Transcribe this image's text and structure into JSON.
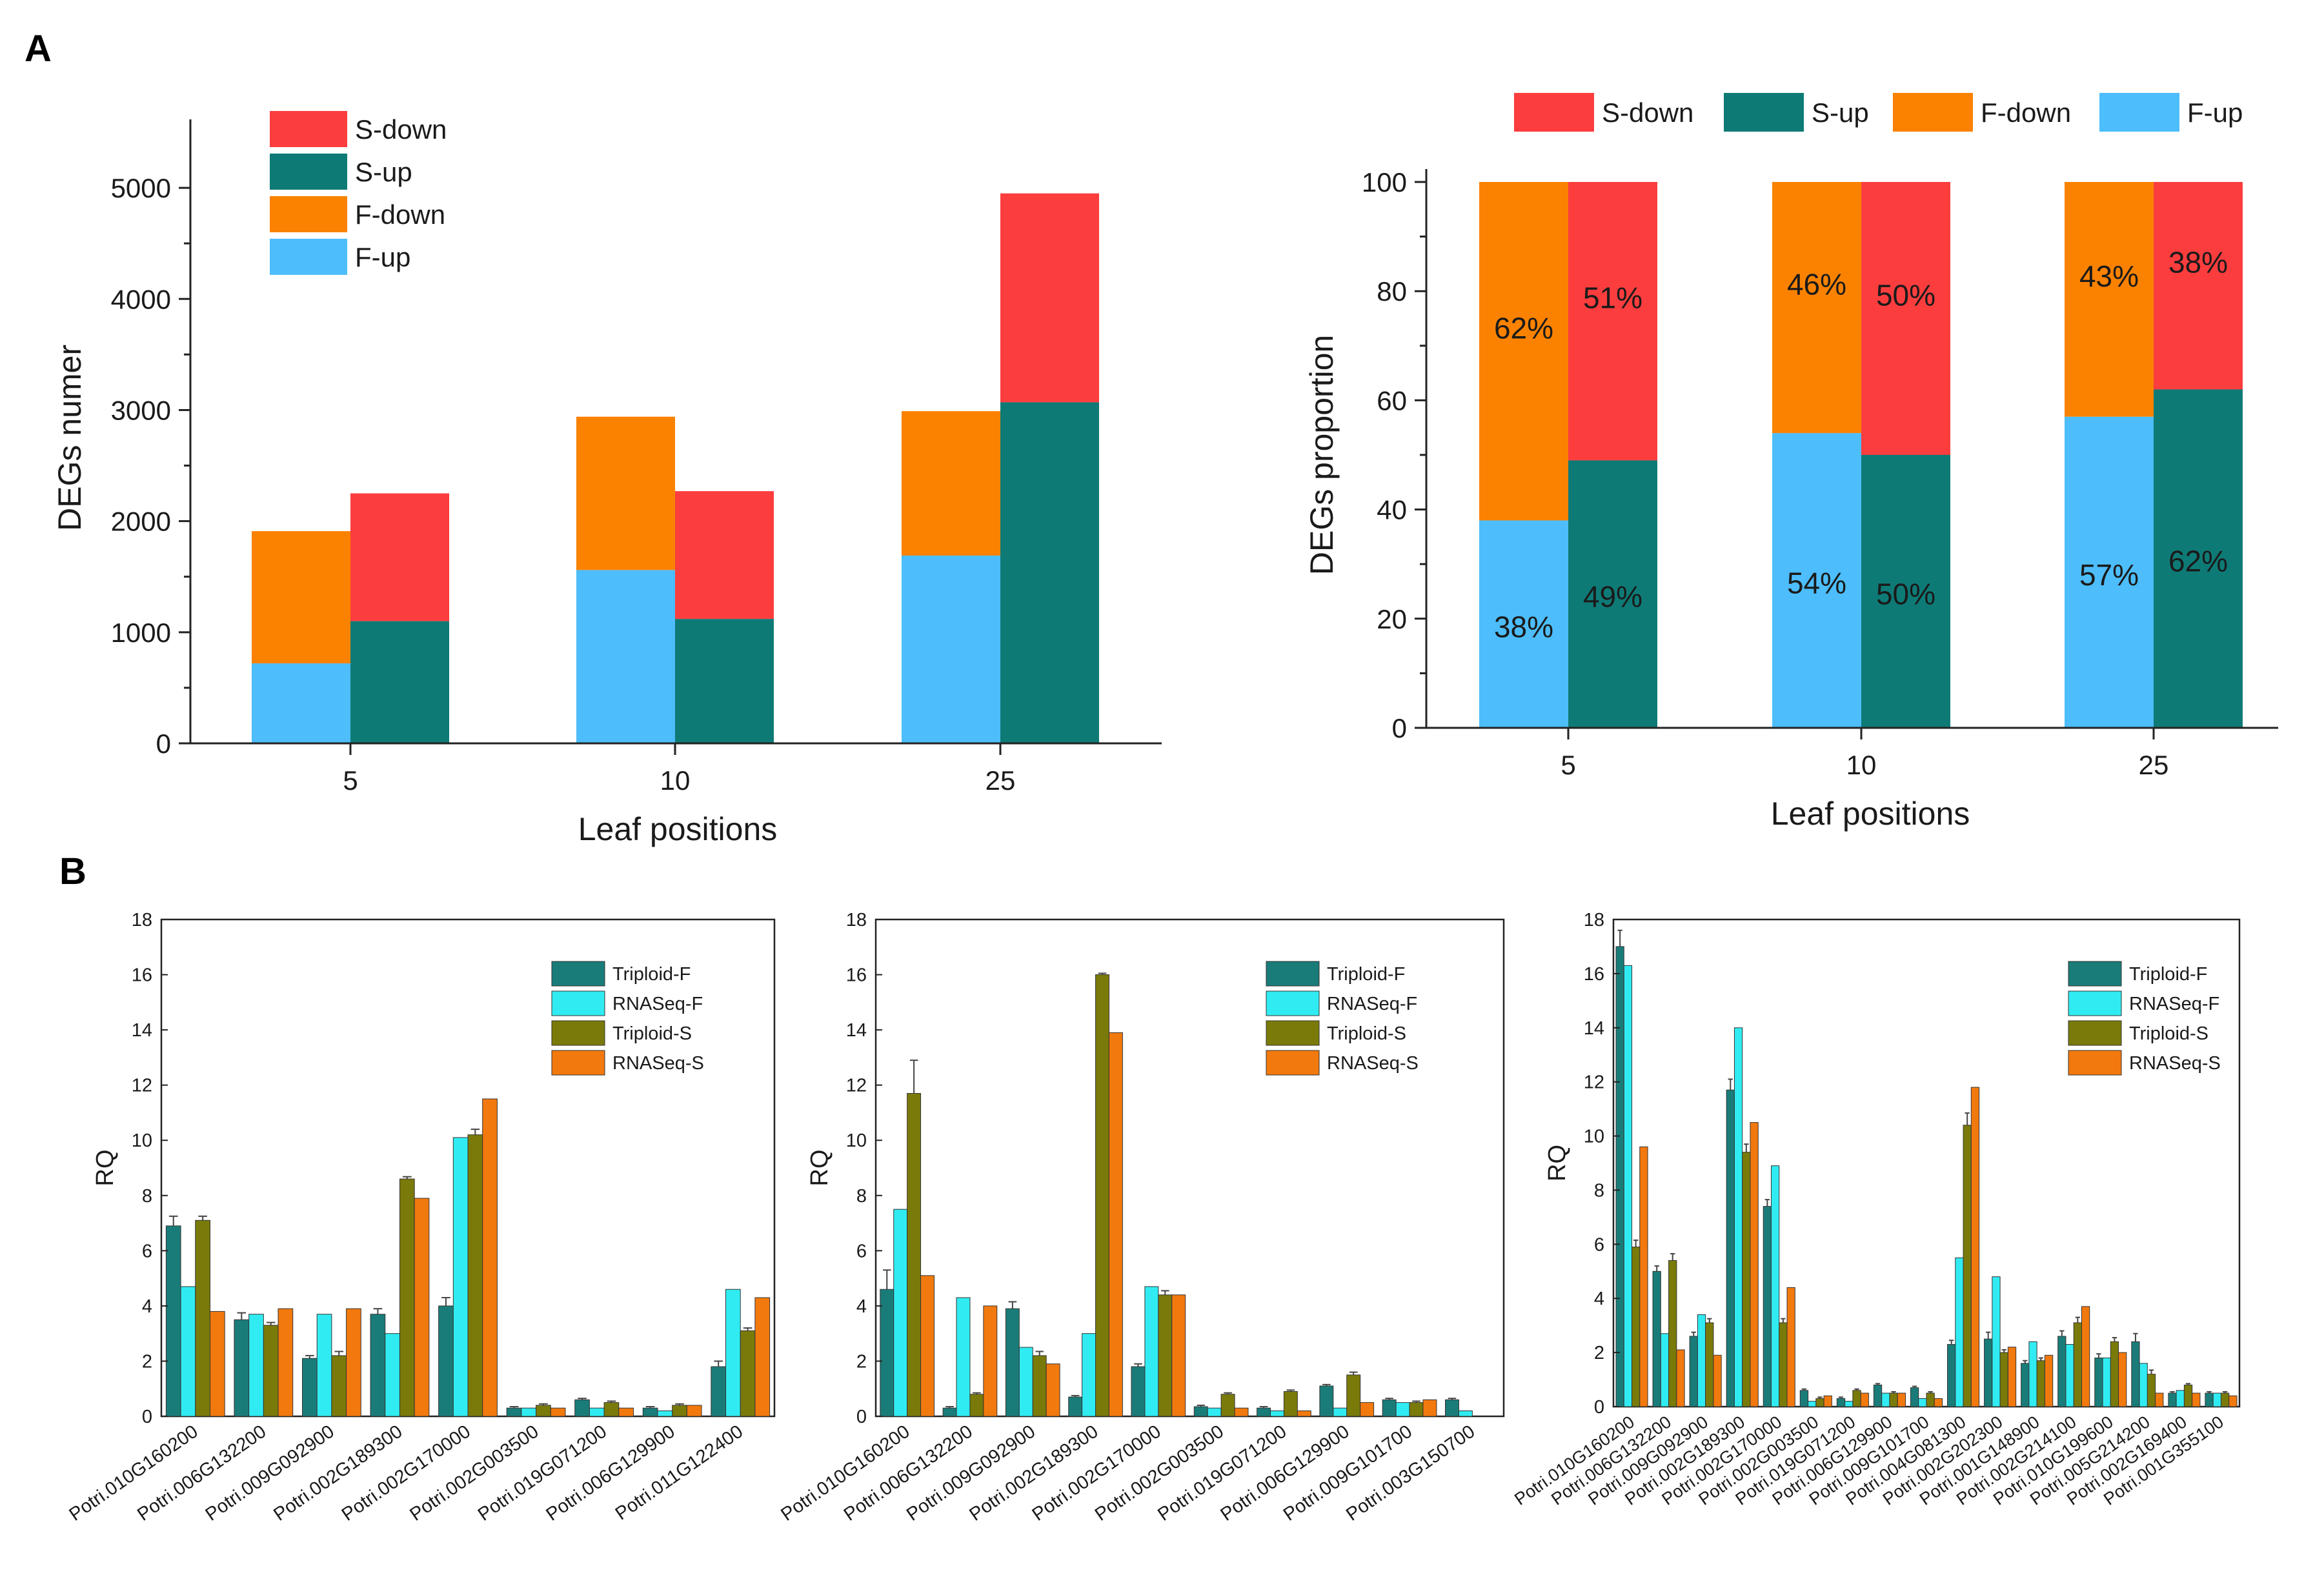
{
  "colors": {
    "s_down": "#fb3d3e",
    "s_up": "#0e7a76",
    "f_down": "#fb8200",
    "f_up": "#4dbdfb",
    "triploid_f": "#1a7c79",
    "rnaseq_f": "#30ecf2",
    "triploid_s": "#7a7a0a",
    "rnaseq_s": "#f2790e"
  },
  "panel_labels": {
    "a": "A",
    "b": "B"
  },
  "chart_data": [
    {
      "id": "a-counts",
      "type": "bar",
      "stacked": true,
      "categories": [
        "5",
        "10",
        "25"
      ],
      "groups": [
        {
          "name": "F",
          "stack": [
            {
              "name": "F-up",
              "values": [
                720,
                1560,
                1690
              ]
            },
            {
              "name": "F-down",
              "values": [
                1190,
                1380,
                1300
              ]
            }
          ]
        },
        {
          "name": "S",
          "stack": [
            {
              "name": "S-up",
              "values": [
                1100,
                1120,
                3070
              ]
            },
            {
              "name": "S-down",
              "values": [
                1150,
                1150,
                1880
              ]
            }
          ]
        }
      ],
      "xlabel": "Leaf positions",
      "ylabel": "DEGs numer",
      "ylim": [
        0,
        5500
      ],
      "yticks": [
        0,
        1000,
        2000,
        3000,
        4000,
        5000
      ],
      "legend": [
        "S-down",
        "S-up",
        "F-down",
        "F-up"
      ],
      "legend_position": "top-left"
    },
    {
      "id": "a-proportion",
      "type": "bar",
      "stacked": true,
      "categories": [
        "5",
        "10",
        "25"
      ],
      "groups": [
        {
          "name": "F",
          "stack": [
            {
              "name": "F-up",
              "values": [
                38,
                54,
                57
              ],
              "labels": [
                "38%",
                "54%",
                "57%"
              ]
            },
            {
              "name": "F-down",
              "values": [
                62,
                46,
                43
              ],
              "labels": [
                "62%",
                "46%",
                "43%"
              ]
            }
          ]
        },
        {
          "name": "S",
          "stack": [
            {
              "name": "S-up",
              "values": [
                49,
                50,
                62
              ],
              "labels": [
                "49%",
                "50%",
                "62%"
              ]
            },
            {
              "name": "S-down",
              "values": [
                51,
                50,
                38
              ],
              "labels": [
                "51%",
                "50%",
                "38%"
              ]
            }
          ]
        }
      ],
      "xlabel": "Leaf positions",
      "ylabel": "DEGs proportion",
      "ylim": [
        0,
        100
      ],
      "yticks": [
        0,
        20,
        40,
        60,
        80,
        100
      ],
      "legend": [
        "S-down",
        "S-up",
        "F-down",
        "F-up"
      ],
      "legend_position": "top"
    },
    {
      "id": "b1",
      "type": "bar",
      "categories": [
        "Potri.010G160200",
        "Potri.006G132200",
        "Potri.009G092900",
        "Potri.002G189300",
        "Potri.002G170000",
        "Potri.002G003500",
        "Potri.019G071200",
        "Potri.006G129900",
        "Potri.011G122400"
      ],
      "series": [
        {
          "name": "Triploid-F",
          "values": [
            6.9,
            3.5,
            2.1,
            3.7,
            4.0,
            0.3,
            0.6,
            0.3,
            1.8
          ],
          "errors": [
            0.35,
            0.25,
            0.1,
            0.2,
            0.3,
            0.05,
            0.05,
            0.05,
            0.2
          ]
        },
        {
          "name": "RNASeq-F",
          "values": [
            4.7,
            3.7,
            3.7,
            3.0,
            10.1,
            0.3,
            0.3,
            0.2,
            4.6
          ]
        },
        {
          "name": "Triploid-S",
          "values": [
            7.1,
            3.3,
            2.2,
            8.6,
            10.2,
            0.4,
            0.5,
            0.4,
            3.1
          ],
          "errors": [
            0.15,
            0.1,
            0.15,
            0.08,
            0.2,
            0.05,
            0.05,
            0.05,
            0.1
          ]
        },
        {
          "name": "RNASeq-S",
          "values": [
            3.8,
            3.9,
            3.9,
            7.9,
            11.5,
            0.3,
            0.3,
            0.4,
            4.3
          ]
        }
      ],
      "ylabel": "RQ",
      "ylim": [
        0,
        18
      ],
      "yticks": [
        0,
        2,
        4,
        6,
        8,
        10,
        12,
        14,
        16,
        18
      ],
      "legend_position": "top-right"
    },
    {
      "id": "b2",
      "type": "bar",
      "categories": [
        "Potri.010G160200",
        "Potri.006G132200",
        "Potri.009G092900",
        "Potri.002G189300",
        "Potri.002G170000",
        "Potri.002G003500",
        "Potri.019G071200",
        "Potri.006G129900",
        "Potri.009G101700",
        "Potri.003G150700"
      ],
      "series": [
        {
          "name": "Triploid-F",
          "values": [
            4.6,
            0.3,
            3.9,
            0.7,
            1.8,
            0.35,
            0.3,
            1.1,
            0.6,
            0.6
          ],
          "errors": [
            0.7,
            0.05,
            0.25,
            0.05,
            0.1,
            0.05,
            0.05,
            0.05,
            0.05,
            0.05
          ]
        },
        {
          "name": "RNASeq-F",
          "values": [
            7.5,
            4.3,
            2.5,
            3.0,
            4.7,
            0.3,
            0.2,
            0.3,
            0.5,
            0.2
          ]
        },
        {
          "name": "Triploid-S",
          "values": [
            11.7,
            0.8,
            2.2,
            16.0,
            4.4,
            0.8,
            0.9,
            1.5,
            0.5,
            0.0
          ],
          "errors": [
            1.2,
            0.05,
            0.15,
            0.05,
            0.15,
            0.05,
            0.05,
            0.1,
            0.05,
            0.0
          ]
        },
        {
          "name": "RNASeq-S",
          "values": [
            5.1,
            4.0,
            1.9,
            13.9,
            4.4,
            0.3,
            0.2,
            0.5,
            0.6,
            0.0
          ]
        }
      ],
      "ylabel": "RQ",
      "ylim": [
        0,
        18
      ],
      "yticks": [
        0,
        2,
        4,
        6,
        8,
        10,
        12,
        14,
        16,
        18
      ],
      "legend_position": "top-right"
    },
    {
      "id": "b3",
      "type": "bar",
      "categories": [
        "Potri.010G160200",
        "Potri.006G132200",
        "Potri.009G092900",
        "Potri.002G189300",
        "Potri.002G170000",
        "Potri.002G003500",
        "Potri.019G071200",
        "Potri.006G129900",
        "Potri.009G101700",
        "Potri.004G081300",
        "Potri.002G202300",
        "Potri.001G148900",
        "Potri.002G214100",
        "Potri.010G199600",
        "Potri.005G214200",
        "Potri.002G169400",
        "Potri.001G355100"
      ],
      "series": [
        {
          "name": "Triploid-F",
          "values": [
            17.0,
            5.0,
            2.6,
            11.7,
            7.4,
            0.6,
            0.3,
            0.8,
            0.7,
            2.3,
            2.5,
            1.6,
            2.6,
            1.8,
            2.4,
            0.5,
            0.5
          ],
          "errors": [
            0.6,
            0.2,
            0.15,
            0.4,
            0.25,
            0.05,
            0.05,
            0.05,
            0.05,
            0.15,
            0.25,
            0.1,
            0.2,
            0.15,
            0.3,
            0.05,
            0.05
          ]
        },
        {
          "name": "RNASeq-F",
          "values": [
            16.3,
            2.7,
            3.4,
            14.0,
            8.9,
            0.2,
            0.2,
            0.5,
            0.3,
            5.5,
            4.8,
            2.4,
            2.3,
            1.8,
            1.6,
            0.6,
            0.5
          ]
        },
        {
          "name": "Triploid-S",
          "values": [
            5.9,
            5.4,
            3.1,
            9.4,
            3.1,
            0.3,
            0.6,
            0.5,
            0.5,
            10.4,
            2.0,
            1.7,
            3.1,
            2.4,
            1.2,
            0.8,
            0.5
          ],
          "errors": [
            0.25,
            0.25,
            0.15,
            0.3,
            0.15,
            0.05,
            0.05,
            0.05,
            0.05,
            0.45,
            0.1,
            0.1,
            0.2,
            0.15,
            0.15,
            0.05,
            0.05
          ]
        },
        {
          "name": "RNASeq-S",
          "values": [
            9.6,
            2.1,
            1.9,
            10.5,
            4.4,
            0.4,
            0.5,
            0.5,
            0.3,
            11.8,
            2.2,
            1.9,
            3.7,
            2.0,
            0.5,
            0.5,
            0.4
          ]
        }
      ],
      "ylabel": "RQ",
      "ylim": [
        0,
        18
      ],
      "yticks": [
        0,
        2,
        4,
        6,
        8,
        10,
        12,
        14,
        16,
        18
      ],
      "legend_position": "top-right"
    }
  ]
}
